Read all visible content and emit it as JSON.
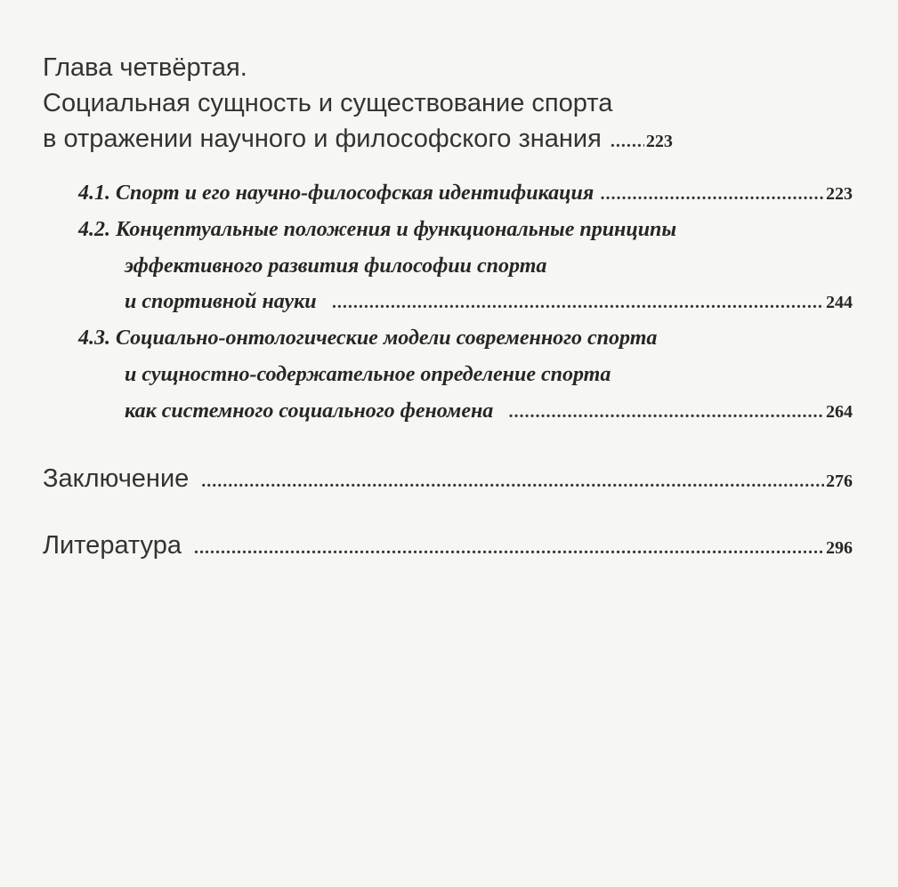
{
  "chapter": {
    "label": "Глава четвёртая.",
    "title_line1": "Социальная сущность и существование спорта",
    "title_line2": "в отражении научного и философского знания",
    "page": "223"
  },
  "sections": [
    {
      "lines": [
        "4.1. Спорт и его научно-философская идентификация"
      ],
      "page": "223"
    },
    {
      "lines": [
        "4.2. Концептуальные положения и функциональные принципы",
        "эффективного развития философии спорта",
        "и спортивной науки"
      ],
      "page": "244"
    },
    {
      "lines": [
        "4.3. Социально-онтологические модели современного спорта",
        "и сущностно-содержательное определение спорта",
        "как системного социального феномена"
      ],
      "page": "264"
    }
  ],
  "conclusion": {
    "title": "Заключение",
    "page": "276"
  },
  "literature": {
    "title": "Литература",
    "page": "296"
  }
}
